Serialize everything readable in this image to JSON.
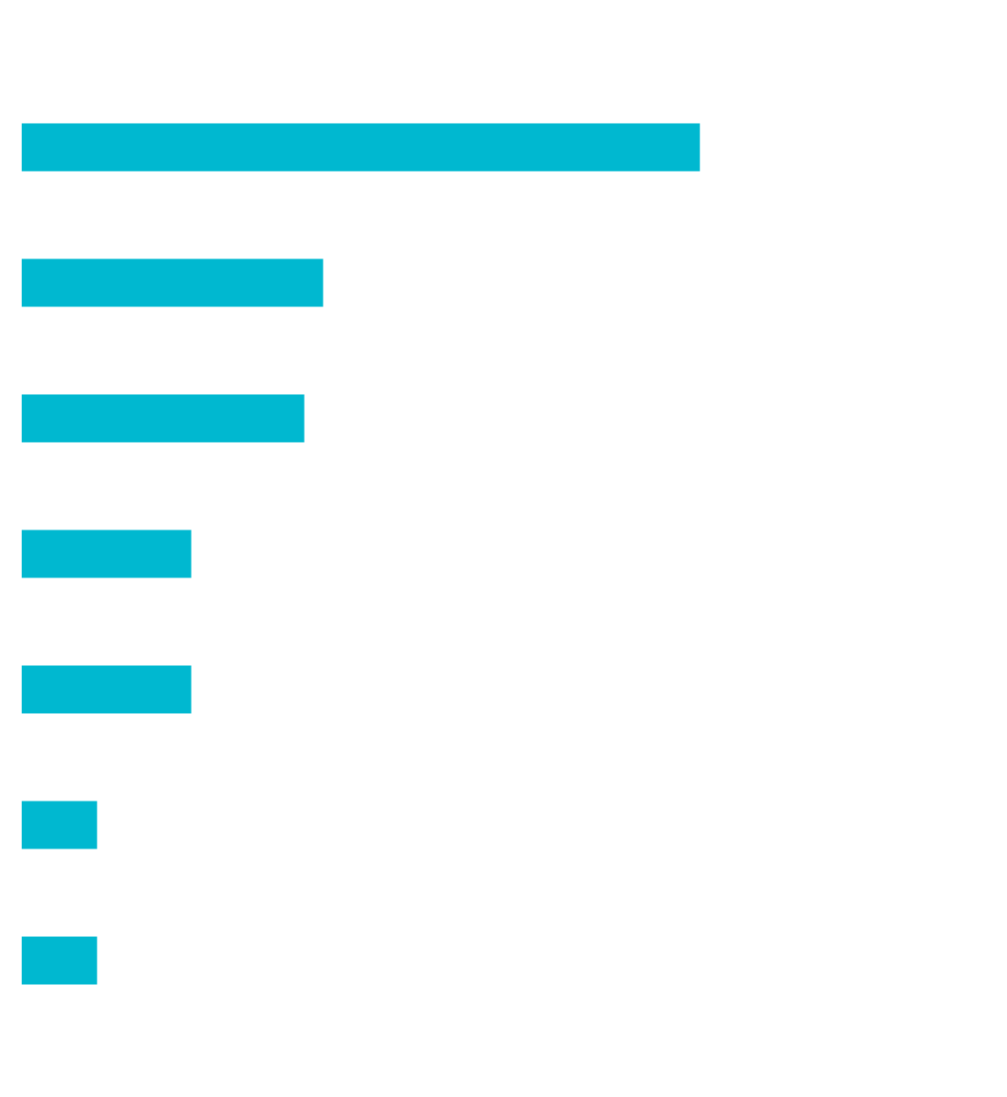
{
  "chart_data": {
    "type": "bar",
    "orientation": "horizontal",
    "title": "",
    "xlabel": "",
    "ylabel": "",
    "categories": [
      "",
      "",
      "",
      "",
      "",
      "",
      ""
    ],
    "values": [
      36,
      16,
      15,
      9,
      9,
      4,
      4
    ],
    "xlim": [
      0,
      50
    ],
    "grid": false,
    "legend": "none",
    "bar_color": "#00B8D0"
  }
}
